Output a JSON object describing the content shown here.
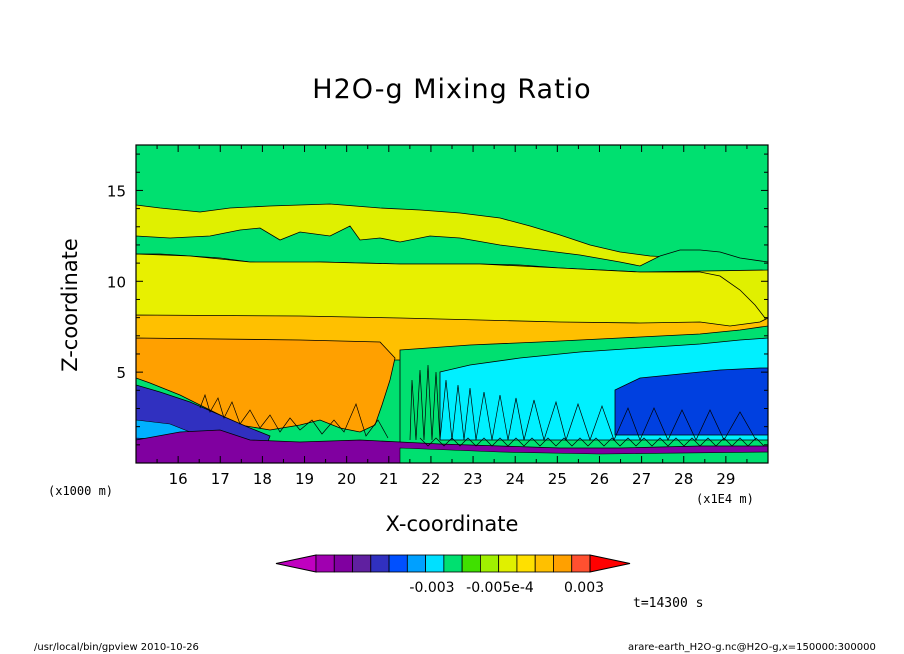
{
  "chart_data": {
    "type": "heatmap",
    "title": "H2O-g Mixing Ratio",
    "xlabel": "X-coordinate",
    "ylabel": "Z-coordinate",
    "x_unit_label": "(x1E4 m)",
    "y_unit_label": "(x1000 m)",
    "x_ticks": [
      "16",
      "17",
      "18",
      "19",
      "20",
      "21",
      "22",
      "23",
      "24",
      "25",
      "26",
      "27",
      "28",
      "29"
    ],
    "y_ticks": [
      "5",
      "10",
      "15"
    ],
    "xlim": [
      15.0,
      30.0
    ],
    "ylim": [
      0.0,
      17.5
    ],
    "colorbar": {
      "colors": [
        "#c000c0",
        "#a000b0",
        "#8000a0",
        "#6020a0",
        "#3030c0",
        "#0050ff",
        "#00a0ff",
        "#00e0ff",
        "#00e070",
        "#40e000",
        "#a0f000",
        "#e0f000",
        "#ffe000",
        "#ffc000",
        "#ffa000",
        "#ff5030",
        "#ff0000"
      ],
      "tick_labels": [
        "-0.003",
        "-0.005e-4",
        "0.003"
      ]
    },
    "regions": [
      {
        "name": "upper-green",
        "z_range": [
          12.5,
          17.5
        ],
        "color": "#00e070"
      },
      {
        "name": "upper-yellow",
        "z_range": [
          11.0,
          14.0
        ],
        "color": "#e0f000"
      },
      {
        "name": "mid-yellow",
        "z_range": [
          8.4,
          11.0
        ],
        "color": "#e8f000"
      },
      {
        "name": "orange-band",
        "z_range": [
          7.0,
          8.4
        ],
        "color": "#ffc000"
      },
      {
        "name": "dark-orange",
        "z_range": [
          2.5,
          7.0
        ],
        "color": "#ffa000"
      },
      {
        "name": "cyan-region",
        "z_range": [
          1.5,
          6.8
        ],
        "color": "#00f0ff"
      },
      {
        "name": "blue-region",
        "z_range": [
          2.0,
          5.0
        ],
        "color": "#0040e0"
      },
      {
        "name": "purple-lower",
        "z_range": [
          0.0,
          2.0
        ],
        "color": "#8000a0"
      }
    ]
  },
  "time_label": "t=14300 s",
  "footer_left": "/usr/local/bin/gpview  2010-10-26",
  "footer_right": "arare-earth_H2O-g.nc@H2O-g,x=150000:300000"
}
